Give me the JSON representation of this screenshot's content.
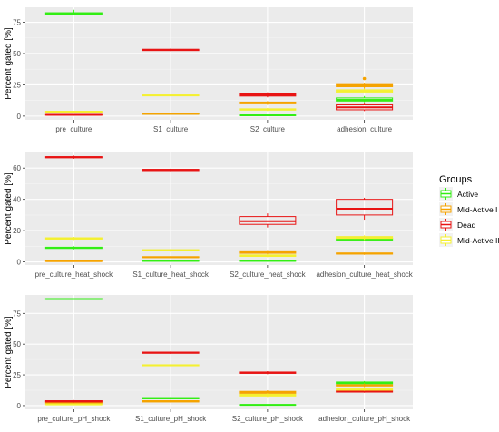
{
  "chart_data": [
    {
      "type": "boxplot",
      "ylabel": "Percent gated [%]",
      "ylim": [
        -3,
        87
      ],
      "yticks": [
        0,
        25,
        50,
        75
      ],
      "categories": [
        "pre_culture",
        "S1_culture",
        "S2_culture",
        "adhesion_culture"
      ],
      "groups": [
        {
          "name": "Active",
          "boxes": [
            {
              "min": 81,
              "q1": 81.3,
              "median": 82,
              "q3": 82.6,
              "max": 85
            },
            {
              "min": 1.5,
              "q1": 1.7,
              "median": 2,
              "q3": 2.3,
              "max": 2.5
            },
            {
              "min": 0.2,
              "q1": 0.4,
              "median": 0.6,
              "q3": 0.8,
              "max": 1
            },
            {
              "min": 11,
              "q1": 12,
              "median": 13,
              "q3": 14.5,
              "max": 16
            }
          ]
        },
        {
          "name": "Mid-Active I",
          "boxes": [
            {
              "min": 0.5,
              "q1": 0.8,
              "median": 1,
              "q3": 1.2,
              "max": 1.5
            },
            {
              "min": 1.2,
              "q1": 1.5,
              "median": 1.8,
              "q3": 2.1,
              "max": 2.4
            },
            {
              "min": 9,
              "q1": 9.8,
              "median": 10.5,
              "q3": 11.2,
              "max": 12
            },
            {
              "min": 22,
              "q1": 23.5,
              "median": 24.5,
              "q3": 25.2,
              "max": 26,
              "outliers": [
                30
              ]
            }
          ]
        },
        {
          "name": "Dead",
          "boxes": [
            {
              "min": 0.5,
              "q1": 0.8,
              "median": 1,
              "q3": 1.2,
              "max": 1.5
            },
            {
              "min": 52,
              "q1": 52.4,
              "median": 53,
              "q3": 53.4,
              "max": 54
            },
            {
              "min": 15,
              "q1": 16,
              "median": 17,
              "q3": 17.8,
              "max": 19
            },
            {
              "min": 4,
              "q1": 5,
              "median": 7,
              "q3": 9,
              "max": 10
            }
          ]
        },
        {
          "name": "Mid-Active II",
          "boxes": [
            {
              "min": 3,
              "q1": 3.2,
              "median": 3.5,
              "q3": 3.8,
              "max": 4
            },
            {
              "min": 16,
              "q1": 16.3,
              "median": 16.5,
              "q3": 16.8,
              "max": 17
            },
            {
              "min": 4,
              "q1": 4.8,
              "median": 5.3,
              "q3": 5.8,
              "max": 6.5
            },
            {
              "min": 18,
              "q1": 19,
              "median": 20,
              "q3": 21,
              "max": 22
            }
          ]
        }
      ]
    },
    {
      "type": "boxplot",
      "ylabel": "Percent gated [%]",
      "ylim": [
        -2,
        70
      ],
      "yticks": [
        0,
        20,
        40,
        60
      ],
      "categories": [
        "pre_culture_heat_shock",
        "S1_culture_heat_shock",
        "S2_culture_heat_shock",
        "adhesion_culture_heat_shock"
      ],
      "groups": [
        {
          "name": "Active",
          "boxes": [
            {
              "min": 8,
              "q1": 8.6,
              "median": 9,
              "q3": 9.4,
              "max": 10
            },
            {
              "min": 0.2,
              "q1": 0.4,
              "median": 0.6,
              "q3": 0.8,
              "max": 1
            },
            {
              "min": 0.2,
              "q1": 0.4,
              "median": 0.6,
              "q3": 0.8,
              "max": 1
            },
            {
              "min": 13.5,
              "q1": 14,
              "median": 14.5,
              "q3": 15,
              "max": 15.5
            }
          ]
        },
        {
          "name": "Mid-Active I",
          "boxes": [
            {
              "min": 0.1,
              "q1": 0.3,
              "median": 0.5,
              "q3": 0.7,
              "max": 0.9
            },
            {
              "min": 2.5,
              "q1": 2.8,
              "median": 3,
              "q3": 3.3,
              "max": 3.6
            },
            {
              "min": 5,
              "q1": 5.5,
              "median": 6,
              "q3": 6.5,
              "max": 7
            },
            {
              "min": 4.5,
              "q1": 5,
              "median": 5.3,
              "q3": 5.7,
              "max": 6
            }
          ]
        },
        {
          "name": "Dead",
          "boxes": [
            {
              "min": 66,
              "q1": 66.6,
              "median": 67,
              "q3": 67.3,
              "max": 68
            },
            {
              "min": 58,
              "q1": 58.4,
              "median": 58.8,
              "q3": 59.2,
              "max": 59.6
            },
            {
              "min": 22,
              "q1": 24,
              "median": 26,
              "q3": 29,
              "max": 31
            },
            {
              "min": 27,
              "q1": 30,
              "median": 34,
              "q3": 40,
              "max": 41
            }
          ]
        },
        {
          "name": "Mid-Active II",
          "boxes": [
            {
              "min": 14,
              "q1": 14.6,
              "median": 15,
              "q3": 15.4,
              "max": 16
            },
            {
              "min": 6.5,
              "q1": 7,
              "median": 7.4,
              "q3": 7.8,
              "max": 8.2
            },
            {
              "min": 3,
              "q1": 3.5,
              "median": 4,
              "q3": 4.5,
              "max": 5
            },
            {
              "min": 14,
              "q1": 15,
              "median": 15.6,
              "q3": 16.2,
              "max": 17
            }
          ]
        }
      ]
    },
    {
      "type": "boxplot",
      "ylabel": "Percent gated [%]",
      "ylim": [
        -3,
        90
      ],
      "yticks": [
        0,
        25,
        50,
        75
      ],
      "categories": [
        "pre_culture_pH_shock",
        "S1_culture_pH_shock",
        "S2_culture_pH_shock",
        "adhesion_culture_pH_shock"
      ],
      "groups": [
        {
          "name": "Active",
          "boxes": [
            {
              "min": 86,
              "q1": 86.4,
              "median": 86.7,
              "q3": 87,
              "max": 87.3
            },
            {
              "min": 5,
              "q1": 5.5,
              "median": 6,
              "q3": 6.5,
              "max": 7
            },
            {
              "min": 0.2,
              "q1": 0.4,
              "median": 0.6,
              "q3": 0.8,
              "max": 1
            },
            {
              "min": 17,
              "q1": 17.8,
              "median": 18.5,
              "q3": 19.2,
              "max": 20
            }
          ]
        },
        {
          "name": "Mid-Active I",
          "boxes": [
            {
              "min": 1.5,
              "q1": 2,
              "median": 2.5,
              "q3": 3,
              "max": 3.5
            },
            {
              "min": 2.5,
              "q1": 3,
              "median": 3.5,
              "q3": 4,
              "max": 4.5
            },
            {
              "min": 9,
              "q1": 10,
              "median": 10.8,
              "q3": 11.6,
              "max": 12.5
            },
            {
              "min": 15,
              "q1": 16,
              "median": 16.5,
              "q3": 17,
              "max": 18
            }
          ]
        },
        {
          "name": "Dead",
          "boxes": [
            {
              "min": 2.5,
              "q1": 3,
              "median": 3.5,
              "q3": 4,
              "max": 4.5
            },
            {
              "min": 42,
              "q1": 42.6,
              "median": 43,
              "q3": 43.5,
              "max": 44
            },
            {
              "min": 25.5,
              "q1": 26.2,
              "median": 26.8,
              "q3": 27.3,
              "max": 28
            },
            {
              "min": 10.5,
              "q1": 11,
              "median": 11.5,
              "q3": 12,
              "max": 12.5
            }
          ]
        },
        {
          "name": "Mid-Active II",
          "boxes": [
            {
              "min": 0.5,
              "q1": 0.8,
              "median": 1,
              "q3": 1.2,
              "max": 1.5
            },
            {
              "min": 32,
              "q1": 32.4,
              "median": 32.8,
              "q3": 33.2,
              "max": 33.6
            },
            {
              "min": 7,
              "q1": 7.8,
              "median": 8.5,
              "q3": 9.2,
              "max": 10
            },
            {
              "min": 12,
              "q1": 12.5,
              "median": 13,
              "q3": 13.5,
              "max": 14
            }
          ]
        }
      ]
    }
  ],
  "legend": {
    "title": "Groups",
    "position": "right",
    "items": [
      {
        "name": "Active",
        "color": "#33ee14"
      },
      {
        "name": "Mid-Active I",
        "color": "#f5a300"
      },
      {
        "name": "Dead",
        "color": "#e81414"
      },
      {
        "name": "Mid-Active II",
        "color": "#f4f031"
      }
    ]
  },
  "style": {
    "panel_background": "#ebebeb",
    "grid_color": "#ffffff",
    "grid": true
  }
}
